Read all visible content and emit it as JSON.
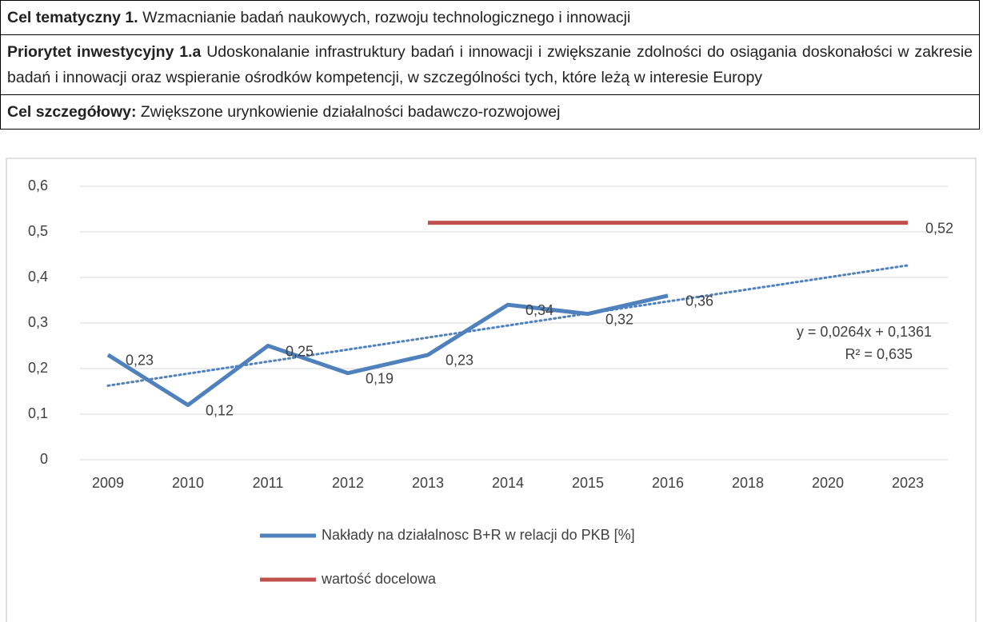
{
  "table": {
    "rows": [
      {
        "label": "Cel tematyczny 1.",
        "text": "Wzmacnianie badań naukowych, rozwoju technologicznego i innowacji"
      },
      {
        "label": "Priorytet inwestycyjny 1.a",
        "text": "Udoskonalanie infrastruktury badań i innowacji i zwiększanie zdolności do osiągania doskonałości w zakresie badań i innowacji oraz wspieranie ośrodków kompetencji, w szczególności tych, które leżą w interesie Europy"
      },
      {
        "label": "Cel szczegółowy:",
        "text": "Zwiększone urynkowienie działalności badawczo-rozwojowej"
      }
    ]
  },
  "chart_data": {
    "type": "line",
    "categories": [
      "2009",
      "2010",
      "2011",
      "2012",
      "2013",
      "2014",
      "2015",
      "2016",
      "2018",
      "2020",
      "2023"
    ],
    "series": [
      {
        "name": "Nakłady na działalnosc B+R w relacji do PKB [%]",
        "color": "#4f81bd",
        "values": [
          0.23,
          0.12,
          0.25,
          0.19,
          0.23,
          0.34,
          0.32,
          0.36,
          null,
          null,
          null
        ],
        "value_labels": [
          "0,23",
          "0,12",
          "0,25",
          "0,19",
          "0,23",
          "0,34",
          "0,32",
          "0,36",
          null,
          null,
          null
        ]
      },
      {
        "name": "wartość docelowa",
        "color": "#c0504d",
        "values": [
          null,
          null,
          null,
          null,
          0.52,
          0.52,
          0.52,
          0.52,
          0.52,
          0.52,
          0.52
        ],
        "value_labels": [
          null,
          null,
          null,
          null,
          null,
          null,
          null,
          null,
          null,
          null,
          "0,52"
        ]
      }
    ],
    "trendline": {
      "slope": 0.0264,
      "intercept": 0.1361,
      "color": "#4f81bd",
      "equation_label": "y = 0,0264x + 0,1361",
      "r2_label": "R² = 0,635"
    },
    "ylim": [
      0,
      0.6
    ],
    "yticks": [
      0,
      {
        "value": 0.1,
        "label": "0,1"
      },
      {
        "value": 0.2,
        "label": "0,2"
      },
      {
        "value": 0.3,
        "label": "0,3"
      },
      {
        "value": 0.4,
        "label": "0,4"
      },
      {
        "value": 0.5,
        "label": "0,5"
      },
      {
        "value": 0.6,
        "label": "0,6"
      }
    ],
    "grid": true,
    "legend": "bottom"
  }
}
